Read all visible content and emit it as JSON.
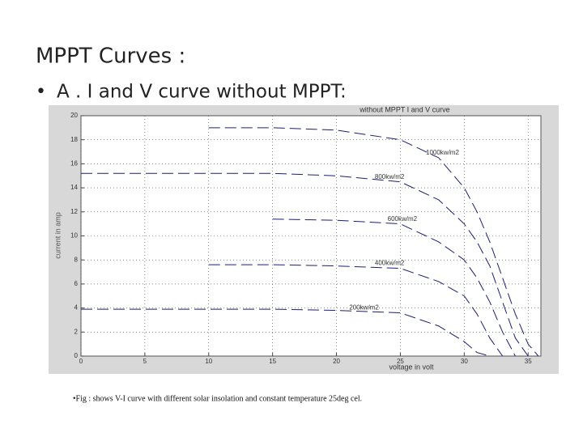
{
  "slide": {
    "title": "MPPT Curves :",
    "bullet": "A . I and V curve without MPPT:",
    "caption": "•Fig : shows V-I curve with different solar insolation and constant temperature 25deg cel."
  },
  "chart_data": {
    "type": "line",
    "title": "without MPPT I and V curve",
    "x_label": "voltage in volt",
    "y_label": "current in amp",
    "x": [
      0,
      5,
      10,
      15,
      20,
      25,
      28,
      30,
      31,
      32,
      33,
      34,
      35,
      35.8
    ],
    "series": [
      {
        "name": "1000kw/m2",
        "color": "#1c1c7a",
        "values": [
          null,
          null,
          19,
          19,
          18.8,
          18,
          16.5,
          14,
          12,
          9.5,
          6.5,
          3.5,
          1,
          0
        ]
      },
      {
        "name": "800kw/m2",
        "color": "#1c1c7a",
        "values": [
          15.2,
          15.2,
          15.2,
          15.2,
          15,
          14.5,
          13,
          11,
          9.5,
          7.5,
          4.5,
          1.5,
          0,
          null
        ]
      },
      {
        "name": "600kw/m2",
        "color": "#1c1c7a",
        "values": [
          null,
          null,
          null,
          11.4,
          11.3,
          11,
          9.5,
          8,
          6.5,
          4.5,
          2,
          0,
          null,
          null
        ]
      },
      {
        "name": "400kw/m2",
        "color": "#1c1c7a",
        "values": [
          null,
          null,
          7.6,
          7.6,
          7.5,
          7.3,
          6.2,
          5,
          3.5,
          1.5,
          0,
          null,
          null,
          null
        ]
      },
      {
        "name": "200kw/m2",
        "color": "#1c1c7a",
        "values": [
          3.9,
          3.9,
          3.9,
          3.9,
          3.8,
          3.6,
          2.5,
          1.2,
          0.3,
          0,
          null,
          null,
          null,
          null
        ]
      }
    ],
    "xlim": [
      0,
      36
    ],
    "ylim": [
      0,
      20
    ],
    "xticks": [
      0,
      5,
      10,
      15,
      20,
      25,
      30,
      35
    ],
    "yticks": [
      0,
      2,
      4,
      6,
      8,
      10,
      12,
      14,
      16,
      18,
      20
    ],
    "grid": true
  }
}
